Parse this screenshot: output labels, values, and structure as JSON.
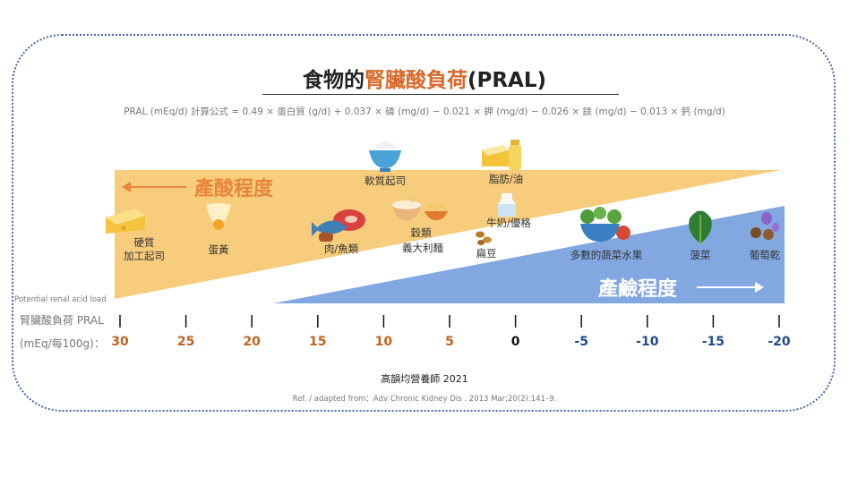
{
  "title": {
    "prefix": "食物的",
    "highlight": "腎臟酸負荷",
    "suffix": "(PRAL)"
  },
  "formula": "PRAL (mEq/d) 計算公式 = 0.49 × 蛋白質 (g/d) + 0.037 × 磷 (mg/d) − 0.021 × 鉀 (mg/d) − 0.026 × 鎂 (mg/d) − 0.013 × 鈣 (mg/d)",
  "acid_label": "產酸程度",
  "alkali_label": "產鹼程度",
  "axis": {
    "note": "Potential renal acid load",
    "header_line1": "腎臟酸負荷 PRAL",
    "header_line2": "(mEq/每100g)：",
    "ticks": [
      "30",
      "25",
      "20",
      "15",
      "10",
      "5",
      "0",
      "-5",
      "-10",
      "-15",
      "-20"
    ],
    "acid_color": "#c4621f",
    "neutral_color": "#111111",
    "alkali_color": "#1f4c8f"
  },
  "foods": {
    "hard_cheese": {
      "line1": "硬質",
      "line2": "加工起司"
    },
    "egg_yolk": "蛋黃",
    "meat_fish": "肉/魚類",
    "soft_cheese": "軟質起司",
    "grains": "穀類",
    "pasta": "義大利麵",
    "fat_oil": "脂肪/油",
    "milk_yogurt": "牛奶/優格",
    "legumes": "扁豆",
    "veg_fruit": "多數的蔬菜水果",
    "spinach": "菠菜",
    "raisins": "葡萄乾"
  },
  "colors": {
    "acid_band": "#f7cc7c",
    "alkali_band": "#82a7e1",
    "accent": "#d8692a"
  },
  "credit": "高韻均營養師 2021",
  "reference": "Ref. / adapted from：Adv Chronic Kidney Dis . 2013 Mar;20(2):141–9."
}
